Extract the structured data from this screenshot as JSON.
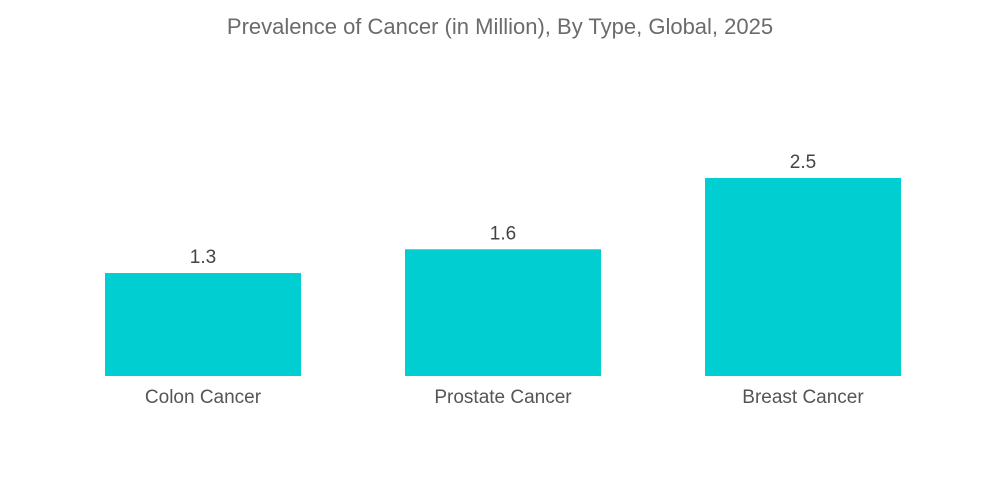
{
  "chart_data": {
    "type": "bar",
    "title": "Prevalence of Cancer (in Million), By Type, Global, 2025",
    "categories": [
      "Colon Cancer",
      "Prostate Cancer",
      "Breast Cancer"
    ],
    "values": [
      1.3,
      1.6,
      2.5
    ],
    "value_labels": [
      "1.3",
      "1.6",
      "2.5"
    ],
    "xlabel": "",
    "ylabel": "",
    "ylim": [
      0,
      2.5
    ],
    "grid": false,
    "legend": "none",
    "colors": {
      "bar": "#00CED1"
    }
  }
}
